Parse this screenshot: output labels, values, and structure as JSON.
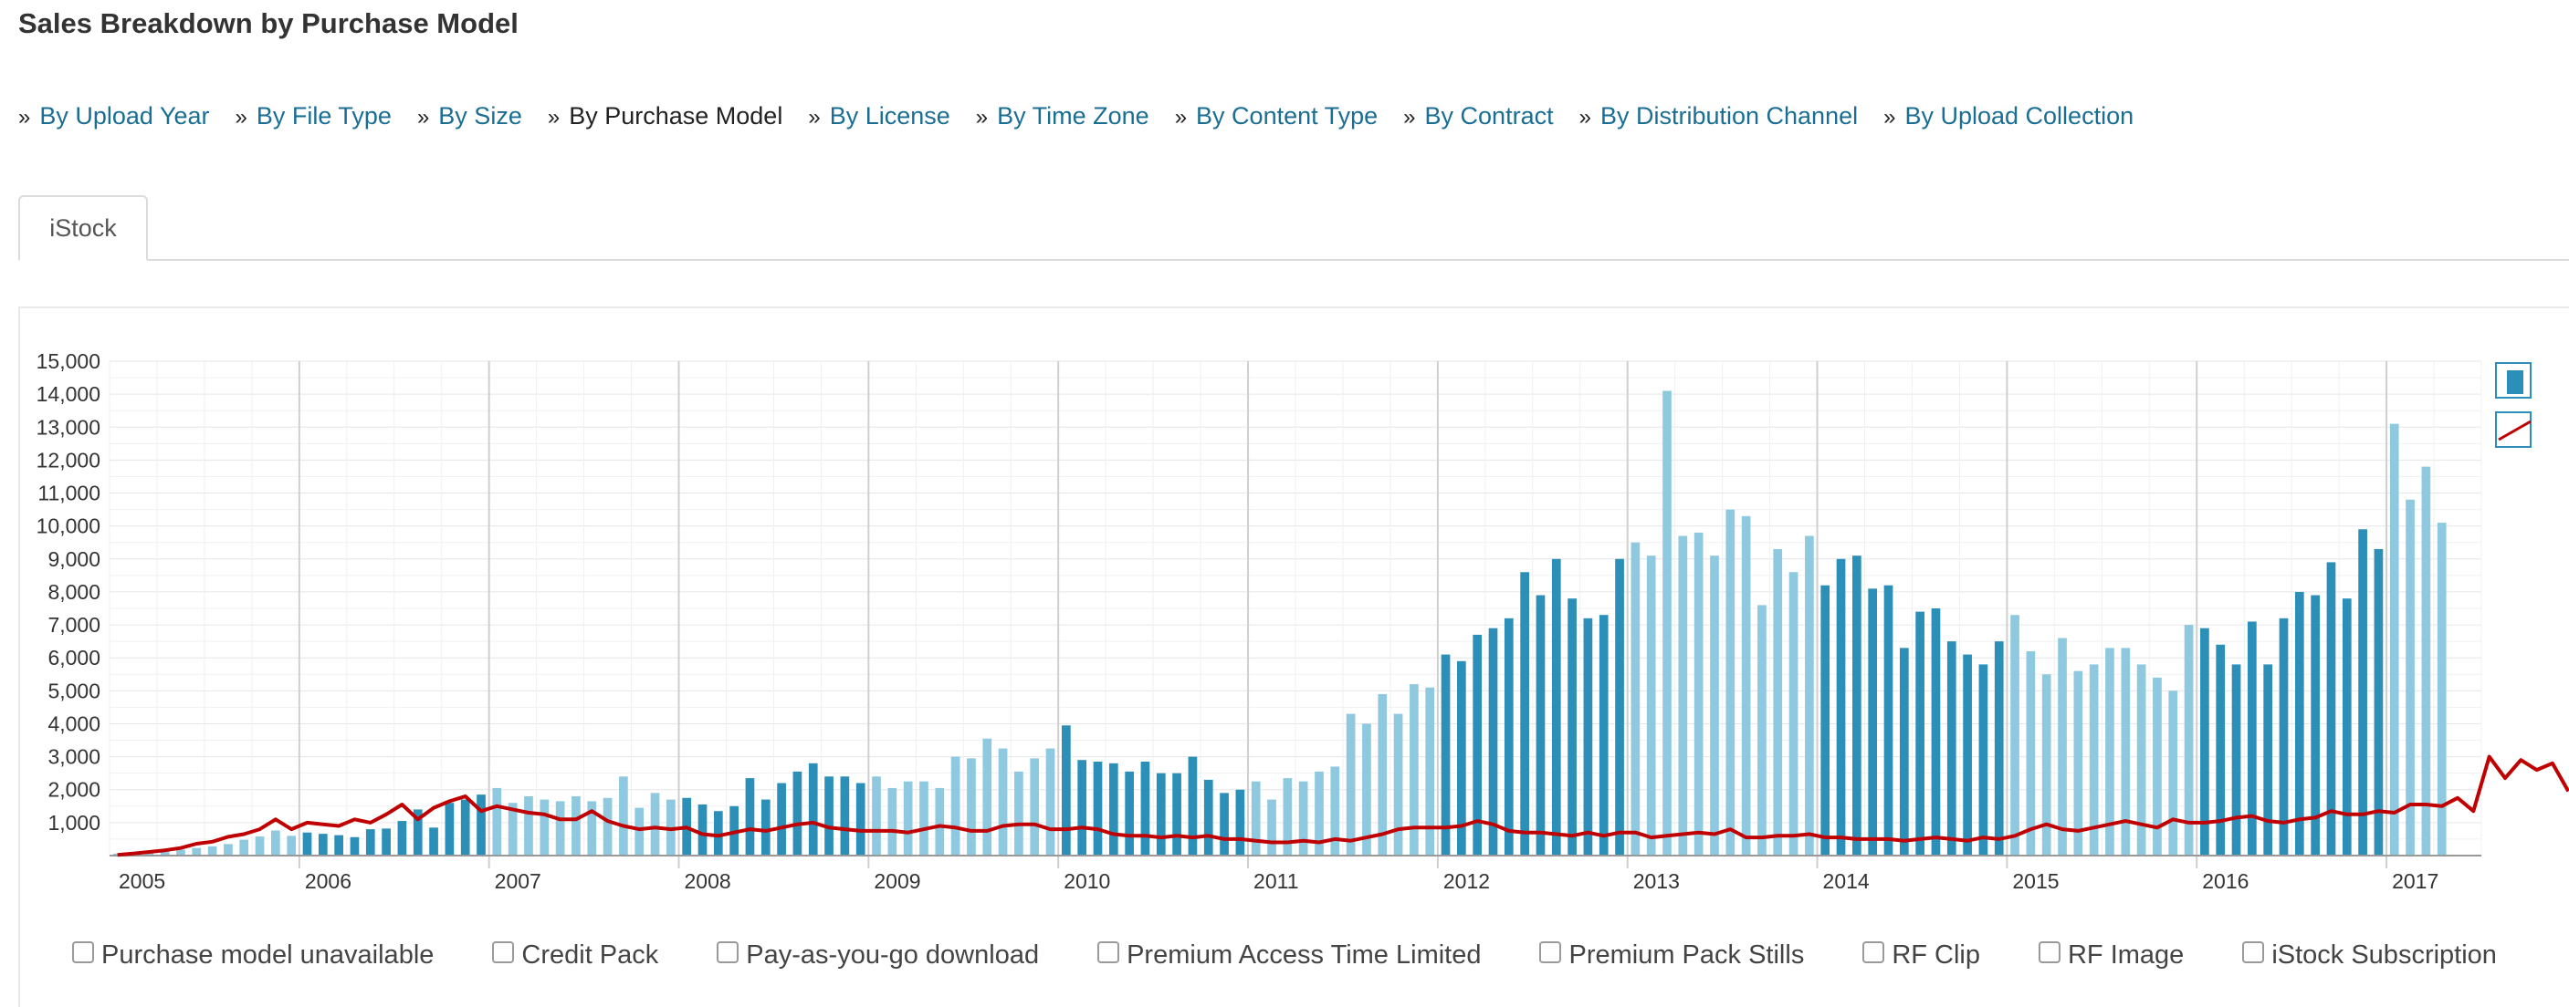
{
  "page": {
    "title": "Sales Breakdown by Purchase Model"
  },
  "breadcrumb": {
    "separator": "»",
    "items": [
      {
        "label": "By Upload Year",
        "current": false
      },
      {
        "label": "By File Type",
        "current": false
      },
      {
        "label": "By Size",
        "current": false
      },
      {
        "label": "By Purchase Model",
        "current": true
      },
      {
        "label": "By License",
        "current": false
      },
      {
        "label": "By Time Zone",
        "current": false
      },
      {
        "label": "By Content Type",
        "current": false
      },
      {
        "label": "By Contract",
        "current": false
      },
      {
        "label": "By Distribution Channel",
        "current": false
      },
      {
        "label": "By Upload Collection",
        "current": false
      }
    ]
  },
  "tabs": [
    {
      "label": "iStock",
      "active": true
    }
  ],
  "chart_data": {
    "type": "bar",
    "x_start": "2005-01",
    "x_tick_labels": [
      "2005",
      "2006",
      "2007",
      "2008",
      "2009",
      "2010",
      "2011",
      "2012",
      "2013",
      "2014",
      "2015",
      "2016",
      "2017"
    ],
    "y_tick_labels": [
      "1,000",
      "2,000",
      "3,000",
      "4,000",
      "5,000",
      "6,000",
      "7,000",
      "8,000",
      "9,000",
      "10,000",
      "11,000",
      "12,000",
      "13,000",
      "14,000",
      "15,000"
    ],
    "ylim": [
      0,
      15000
    ],
    "grid": true,
    "colors": {
      "bar_dark": "#2b8fb8",
      "bar_light": "#8fc9df",
      "line": "#c00000"
    },
    "bar_shading": "alternates by year",
    "series": [
      {
        "kind": "bar",
        "values": [
          60,
          80,
          120,
          140,
          180,
          230,
          280,
          350,
          480,
          580,
          760,
          600,
          700,
          660,
          620,
          560,
          800,
          820,
          1050,
          1400,
          850,
          1600,
          1700,
          1850,
          2050,
          1600,
          1800,
          1700,
          1650,
          1800,
          1650,
          1750,
          2400,
          1450,
          1900,
          1700,
          1750,
          1550,
          1350,
          1500,
          2350,
          1700,
          2200,
          2550,
          2800,
          2400,
          2400,
          2200,
          2400,
          2050,
          2250,
          2250,
          2050,
          3000,
          2950,
          3550,
          3250,
          2550,
          2950,
          3250,
          3950,
          2900,
          2850,
          2800,
          2550,
          2850,
          2500,
          2500,
          3000,
          2300,
          1900,
          2000,
          2250,
          1700,
          2350,
          2250,
          2550,
          2700,
          4300,
          4000,
          4900,
          4300,
          5200,
          5100,
          6100,
          5900,
          6700,
          6900,
          7200,
          8600,
          7900,
          9000,
          7800,
          7200,
          7300,
          9000,
          9500,
          9100,
          14100,
          9700,
          9800,
          9100,
          10500,
          10300,
          7600,
          9300,
          8600,
          9700,
          8200,
          9000,
          9100,
          8100,
          8200,
          6300,
          7400,
          7500,
          6500,
          6100,
          5800,
          6500,
          7300,
          6200,
          5500,
          6600,
          5600,
          5800,
          6300,
          6300,
          5800,
          5400,
          5000,
          7000,
          6900,
          6400,
          5800,
          7100,
          5800,
          7200,
          8000,
          7900,
          8900,
          7800,
          9900,
          9300,
          13100,
          10800,
          11800,
          10100
        ]
      },
      {
        "kind": "line",
        "values": [
          20,
          60,
          110,
          160,
          230,
          360,
          420,
          570,
          650,
          800,
          1100,
          800,
          1000,
          950,
          900,
          1100,
          1000,
          1250,
          1550,
          1100,
          1450,
          1650,
          1800,
          1350,
          1500,
          1400,
          1300,
          1250,
          1100,
          1100,
          1350,
          1050,
          900,
          800,
          850,
          800,
          850,
          650,
          600,
          700,
          800,
          750,
          850,
          950,
          1000,
          850,
          800,
          750,
          750,
          750,
          700,
          800,
          900,
          850,
          750,
          750,
          900,
          950,
          950,
          800,
          800,
          850,
          800,
          650,
          600,
          600,
          550,
          600,
          550,
          600,
          500,
          500,
          450,
          400,
          400,
          450,
          400,
          500,
          450,
          550,
          650,
          800,
          850,
          850,
          850,
          900,
          1050,
          950,
          750,
          700,
          700,
          650,
          600,
          700,
          600,
          700,
          700,
          550,
          600,
          650,
          700,
          650,
          800,
          550,
          550,
          600,
          600,
          650,
          550,
          550,
          500,
          500,
          500,
          450,
          500,
          550,
          500,
          450,
          550,
          500,
          600,
          800,
          950,
          800,
          750,
          850,
          950,
          1050,
          950,
          850,
          1100,
          1000,
          1000,
          1050,
          1150,
          1200,
          1050,
          1000,
          1100,
          1150,
          1350,
          1250,
          1250,
          1350,
          1300,
          1550,
          1550,
          1500,
          1750,
          1350,
          3000,
          2350,
          2900,
          2600,
          2800,
          1950
        ]
      }
    ]
  },
  "legend": {
    "items": [
      "Purchase model unavailable",
      "Credit Pack",
      "Pay-as-you-go download",
      "Premium Access Time Limited",
      "Premium Pack Stills",
      "RF Clip",
      "RF Image",
      "iStock Subscription"
    ]
  }
}
